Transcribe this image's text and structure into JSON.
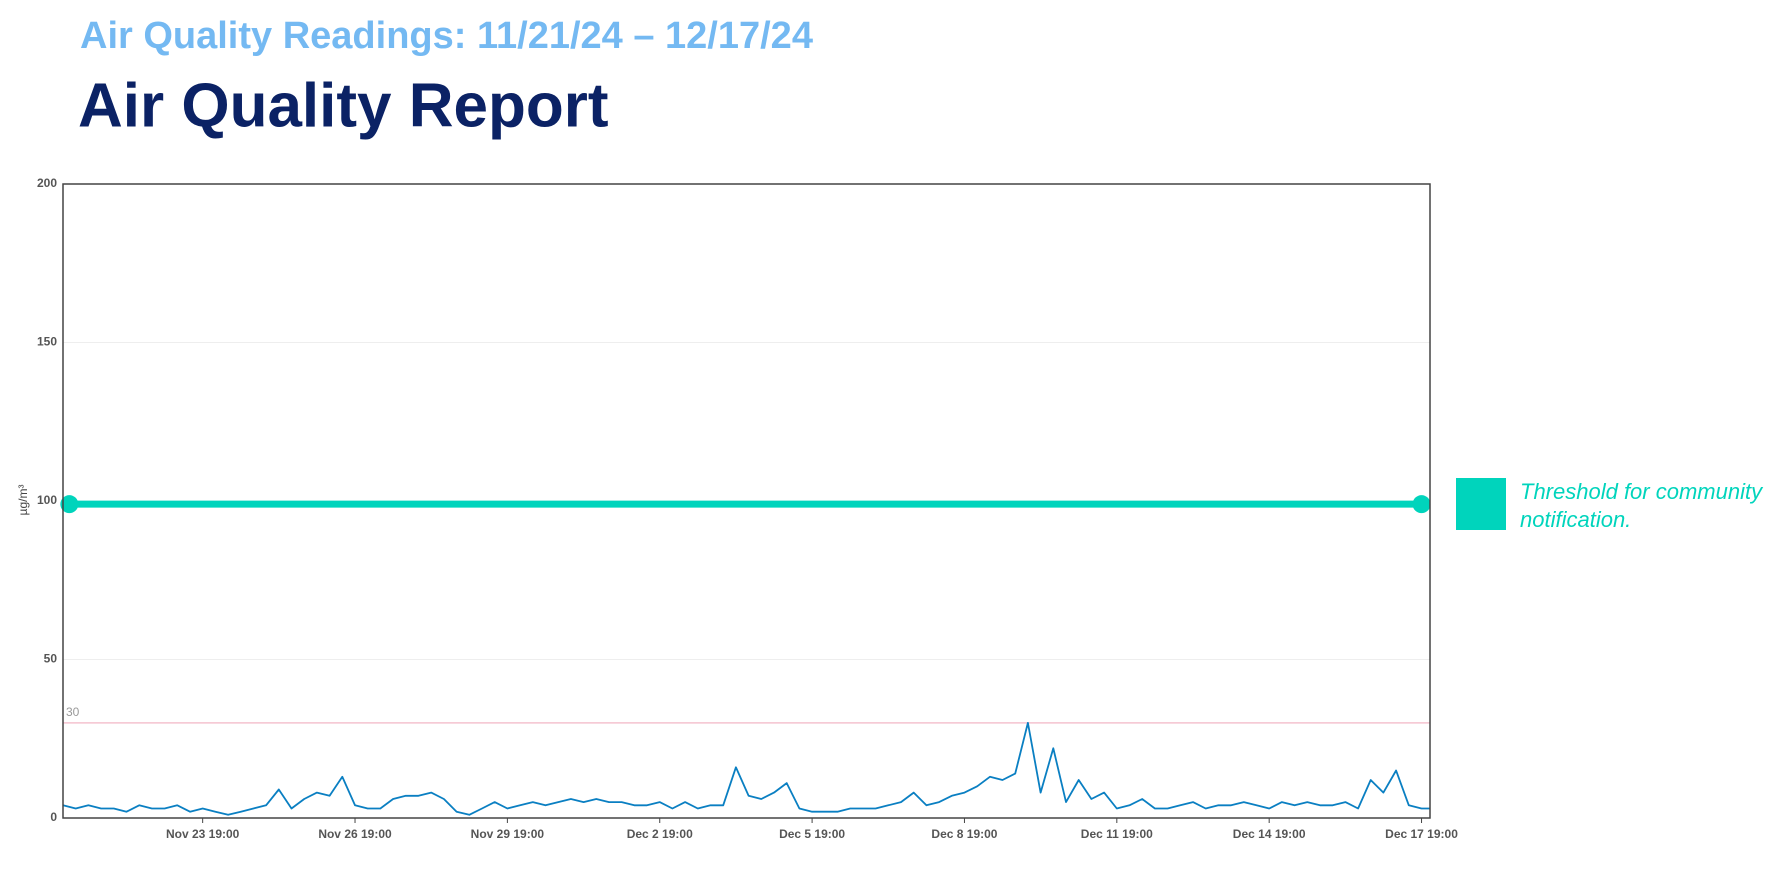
{
  "chart_data": {
    "type": "line",
    "subtitle": "Air Quality Readings: 11/21/24 – 12/17/24",
    "title": "Air Quality Report",
    "y_label": "µg/m³",
    "x": [
      "Nov 21 01:00",
      "Nov 21 07:00",
      "Nov 21 13:00",
      "Nov 21 19:00",
      "Nov 22 01:00",
      "Nov 22 07:00",
      "Nov 22 13:00",
      "Nov 22 19:00",
      "Nov 23 01:00",
      "Nov 23 07:00",
      "Nov 23 13:00",
      "Nov 23 19:00",
      "Nov 24 01:00",
      "Nov 24 07:00",
      "Nov 24 13:00",
      "Nov 24 19:00",
      "Nov 25 01:00",
      "Nov 25 07:00",
      "Nov 25 13:00",
      "Nov 25 19:00",
      "Nov 26 01:00",
      "Nov 26 07:00",
      "Nov 26 13:00",
      "Nov 26 19:00",
      "Nov 27 01:00",
      "Nov 27 07:00",
      "Nov 27 13:00",
      "Nov 27 19:00",
      "Nov 28 01:00",
      "Nov 28 07:00",
      "Nov 28 13:00",
      "Nov 28 19:00",
      "Nov 29 01:00",
      "Nov 29 07:00",
      "Nov 29 13:00",
      "Nov 29 19:00",
      "Nov 30 01:00",
      "Nov 30 07:00",
      "Nov 30 13:00",
      "Nov 30 19:00",
      "Dec 1 01:00",
      "Dec 1 07:00",
      "Dec 1 13:00",
      "Dec 1 19:00",
      "Dec 2 01:00",
      "Dec 2 07:00",
      "Dec 2 13:00",
      "Dec 2 19:00",
      "Dec 3 01:00",
      "Dec 3 07:00",
      "Dec 3 13:00",
      "Dec 3 19:00",
      "Dec 4 01:00",
      "Dec 4 07:00",
      "Dec 4 13:00",
      "Dec 4 19:00",
      "Dec 5 01:00",
      "Dec 5 07:00",
      "Dec 5 13:00",
      "Dec 5 19:00",
      "Dec 6 01:00",
      "Dec 6 07:00",
      "Dec 6 13:00",
      "Dec 6 19:00",
      "Dec 7 01:00",
      "Dec 7 07:00",
      "Dec 7 13:00",
      "Dec 7 19:00",
      "Dec 8 01:00",
      "Dec 8 07:00",
      "Dec 8 13:00",
      "Dec 8 19:00",
      "Dec 9 01:00",
      "Dec 9 07:00",
      "Dec 9 13:00",
      "Dec 9 19:00",
      "Dec 10 01:00",
      "Dec 10 07:00",
      "Dec 10 13:00",
      "Dec 10 19:00",
      "Dec 11 01:00",
      "Dec 11 07:00",
      "Dec 11 13:00",
      "Dec 11 19:00",
      "Dec 12 01:00",
      "Dec 12 07:00",
      "Dec 12 13:00",
      "Dec 12 19:00",
      "Dec 13 01:00",
      "Dec 13 07:00",
      "Dec 13 13:00",
      "Dec 13 19:00",
      "Dec 14 01:00",
      "Dec 14 07:00",
      "Dec 14 13:00",
      "Dec 14 19:00",
      "Dec 15 01:00",
      "Dec 15 07:00",
      "Dec 15 13:00",
      "Dec 15 19:00",
      "Dec 16 01:00",
      "Dec 16 07:00",
      "Dec 16 13:00",
      "Dec 16 19:00",
      "Dec 17 01:00",
      "Dec 17 07:00",
      "Dec 17 13:00",
      "Dec 17 19:00",
      "Dec 17 23:00"
    ],
    "series": [
      {
        "color": "#0a7fc2",
        "values": [
          4,
          3,
          4,
          3,
          3,
          2,
          4,
          3,
          3,
          4,
          2,
          3,
          2,
          1,
          2,
          3,
          4,
          9,
          3,
          6,
          8,
          7,
          13,
          4,
          3,
          3,
          6,
          7,
          7,
          8,
          6,
          2,
          1,
          3,
          5,
          3,
          4,
          5,
          4,
          5,
          6,
          5,
          6,
          5,
          5,
          4,
          4,
          5,
          3,
          5,
          3,
          4,
          4,
          16,
          7,
          6,
          8,
          11,
          3,
          2,
          2,
          2,
          3,
          3,
          3,
          4,
          5,
          8,
          4,
          5,
          7,
          8,
          10,
          13,
          12,
          14,
          30,
          8,
          22,
          5,
          12,
          6,
          8,
          3,
          4,
          6,
          3,
          3,
          4,
          5,
          3,
          4,
          4,
          5,
          4,
          3,
          5,
          4,
          5,
          4,
          4,
          5,
          3,
          12,
          8,
          15,
          4,
          3,
          3
        ]
      }
    ],
    "threshold": {
      "name": "Threshold for community notification.",
      "color": "#00d4bc",
      "x": [
        "Nov 21 04:00",
        "Dec 17 19:00"
      ],
      "values": [
        99,
        99
      ]
    },
    "reference_line": {
      "value": 30,
      "color": "#f4c2cf"
    },
    "xlim": [
      "Nov 21 01:00",
      "Dec 17 23:00"
    ],
    "xticks": [
      "Nov 23 19:00",
      "Nov 26 19:00",
      "Nov 29 19:00",
      "Dec 2 19:00",
      "Dec 5 19:00",
      "Dec 8 19:00",
      "Dec 11 19:00",
      "Dec 14 19:00",
      "Dec 17 19:00"
    ],
    "ylim": [
      0,
      200
    ],
    "yticks": [
      0,
      50,
      100,
      150,
      200
    ],
    "grid": true
  }
}
